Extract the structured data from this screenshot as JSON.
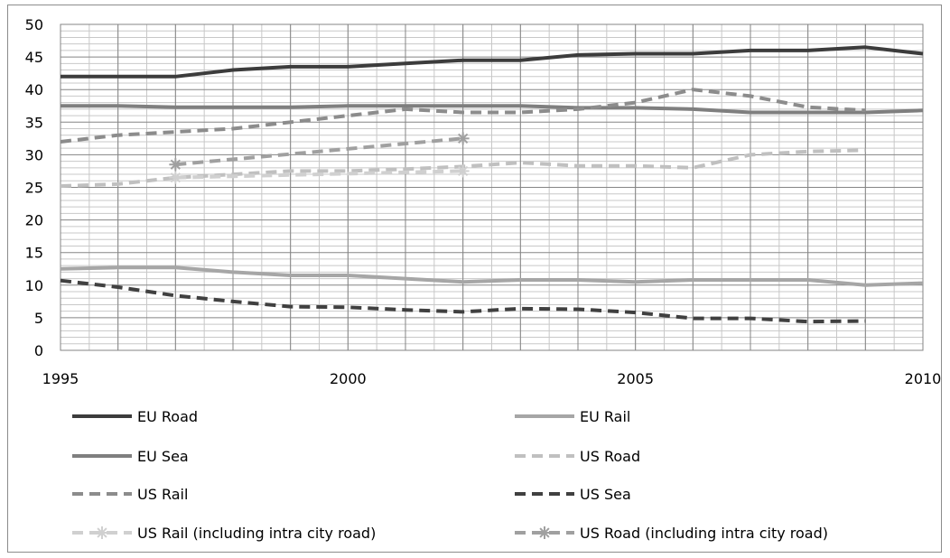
{
  "chart_data": {
    "type": "line",
    "title": "",
    "xlabel": "",
    "ylabel": "",
    "ylim": [
      0,
      50
    ],
    "xlim": [
      1995,
      2010
    ],
    "grid": true,
    "legend_position": "bottom",
    "x_ticks": [
      "1995",
      "2000",
      "2005",
      "2010"
    ],
    "y_ticks": [
      "0",
      "5",
      "10",
      "15",
      "20",
      "25",
      "30",
      "35",
      "40",
      "45",
      "50"
    ],
    "series": [
      {
        "name": "EU Road",
        "color": "#3c3c3c",
        "dash": "solid",
        "marker": "none",
        "x": [
          1995,
          1996,
          1997,
          1998,
          1999,
          2000,
          2001,
          2002,
          2003,
          2004,
          2005,
          2006,
          2007,
          2008,
          2009,
          2010
        ],
        "values": [
          42,
          42,
          42,
          43,
          43.5,
          43.5,
          44,
          44.5,
          44.5,
          45.3,
          45.5,
          45.5,
          46,
          46,
          46.5,
          45.5
        ]
      },
      {
        "name": "EU Rail",
        "color": "#a6a6a6",
        "dash": "solid",
        "marker": "none",
        "x": [
          1995,
          1996,
          1997,
          1998,
          1999,
          2000,
          2001,
          2002,
          2003,
          2004,
          2005,
          2006,
          2007,
          2008,
          2009,
          2010
        ],
        "values": [
          12.5,
          12.7,
          12.7,
          12,
          11.5,
          11.5,
          11,
          10.5,
          10.8,
          10.8,
          10.5,
          10.8,
          10.8,
          10.8,
          10,
          10.3
        ]
      },
      {
        "name": "EU Sea",
        "color": "#7f7f7f",
        "dash": "solid",
        "marker": "none",
        "x": [
          1995,
          1996,
          1997,
          1998,
          1999,
          2000,
          2001,
          2002,
          2003,
          2004,
          2005,
          2006,
          2007,
          2008,
          2009,
          2010
        ],
        "values": [
          37.5,
          37.5,
          37.3,
          37.3,
          37.3,
          37.5,
          37.5,
          37.5,
          37.5,
          37.2,
          37.2,
          37,
          36.5,
          36.5,
          36.5,
          36.8
        ]
      },
      {
        "name": "US Road",
        "color": "#c0c0c0",
        "dash": "dashed",
        "marker": "none",
        "x": [
          1995,
          1996,
          1997,
          1998,
          1999,
          2000,
          2001,
          2002,
          2003,
          2004,
          2005,
          2006,
          2007,
          2008,
          2009
        ],
        "values": [
          25.2,
          25.5,
          26.5,
          27,
          27.5,
          27.5,
          27.8,
          28.2,
          28.8,
          28.3,
          28.3,
          28,
          30,
          30.5,
          30.7
        ]
      },
      {
        "name": "US Rail",
        "color": "#8c8c8c",
        "dash": "dashed",
        "marker": "none",
        "x": [
          1995,
          1996,
          1997,
          1998,
          1999,
          2000,
          2001,
          2002,
          2003,
          2004,
          2005,
          2006,
          2007,
          2008,
          2009
        ],
        "values": [
          32,
          33,
          33.5,
          34,
          35,
          36,
          37,
          36.5,
          36.5,
          37,
          38,
          40,
          39,
          37.3,
          36.8
        ]
      },
      {
        "name": "US Sea",
        "color": "#404040",
        "dash": "dashed",
        "marker": "none",
        "x": [
          1995,
          1996,
          1997,
          1998,
          1999,
          2000,
          2001,
          2002,
          2003,
          2004,
          2005,
          2006,
          2007,
          2008,
          2009
        ],
        "values": [
          10.7,
          9.7,
          8.4,
          7.5,
          6.7,
          6.6,
          6.2,
          5.9,
          6.4,
          6.3,
          5.8,
          4.9,
          4.9,
          4.4,
          4.5
        ]
      },
      {
        "name": "US Rail (including intra city road)",
        "color": "#d0d0d0",
        "dash": "dashed",
        "marker": "star",
        "x": [
          1997,
          2002
        ],
        "values": [
          26.5,
          27.5
        ]
      },
      {
        "name": "US Road (including intra city road)",
        "color": "#a0a0a0",
        "dash": "dashed",
        "marker": "star",
        "x": [
          1997,
          2002
        ],
        "values": [
          28.5,
          32.5
        ]
      }
    ]
  }
}
